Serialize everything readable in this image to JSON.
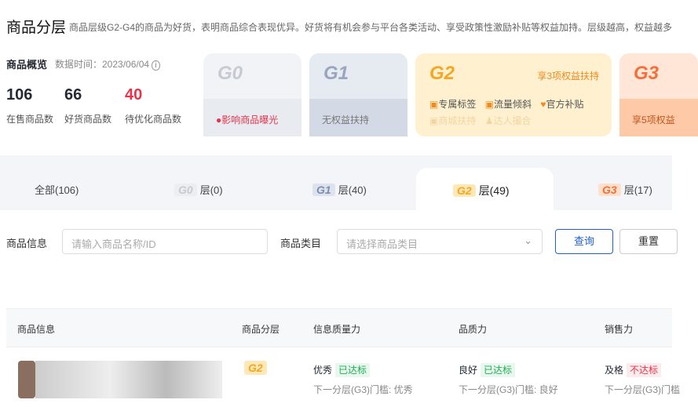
{
  "header": {
    "title": "商品分层",
    "description": "商品层级G2-G4的商品为好货，表明商品综合表现优异。好货将有机会参与平台各类活动、享受政策性激励补贴等权益加持。层级越高，权益越多"
  },
  "overview": {
    "title": "商品概览",
    "data_time": "数据时间：2023/06/04",
    "stats": [
      {
        "value": "106",
        "label": "在售商品数"
      },
      {
        "value": "66",
        "label": "好货商品数"
      },
      {
        "value": "40",
        "label": "待优化商品数"
      }
    ]
  },
  "levels": [
    {
      "name": "G0",
      "bottom": "影响商品曝光"
    },
    {
      "name": "G1",
      "bottom": "无权益扶持"
    },
    {
      "name": "G2",
      "rights": "享3项权益扶持",
      "benefits": [
        "专属标签",
        "流量倾斜",
        "官方补贴"
      ],
      "locked": [
        "商城扶持",
        "达人撮合"
      ]
    },
    {
      "name": "G3",
      "bottom": "享5项权益"
    }
  ],
  "tabs": [
    {
      "label": "全部(106)"
    },
    {
      "badge": "G0",
      "label": "层(0)"
    },
    {
      "badge": "G1",
      "label": "层(40)"
    },
    {
      "badge": "G2",
      "label": "层(49)",
      "active": true
    },
    {
      "badge": "G3",
      "label": "层(17)"
    }
  ],
  "filters": {
    "name_label": "商品信息",
    "name_placeholder": "请输入商品名称/ID",
    "category_label": "商品类目",
    "category_placeholder": "请选择商品类目",
    "query": "查询",
    "reset": "重置"
  },
  "table": {
    "headers": [
      "商品信息",
      "商品分层",
      "信息质量力",
      "品质力",
      "销售力"
    ],
    "rows": [
      {
        "level": "G2",
        "info": {
          "value": "优秀",
          "status": "已达标",
          "next": "下一分层(G3)门槛: 优秀"
        },
        "quality": {
          "value": "良好",
          "status": "已达标",
          "next": "下一分层(G3)门槛: 良好"
        },
        "sales": {
          "value": "及格",
          "status": "不达标",
          "next": "下一分层(G3)门槛"
        }
      }
    ]
  },
  "colors": {
    "accent": "#1f5fd6",
    "danger": "#e8334a",
    "success": "#1fae55",
    "g2": "#f5a623"
  }
}
